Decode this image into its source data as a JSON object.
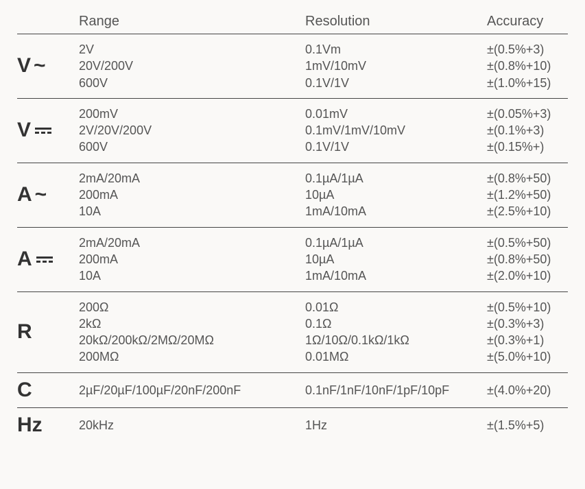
{
  "headers": {
    "range": "Range",
    "resolution": "Resolution",
    "accuracy": "Accuracy"
  },
  "sections": [
    {
      "symbol": "V",
      "symbolType": "ac",
      "rows": [
        {
          "range": "2V",
          "resolution": "0.1Vm",
          "accuracy": "±(0.5%+3)"
        },
        {
          "range": "20V/200V",
          "resolution": "1mV/10mV",
          "accuracy": "±(0.8%+10)"
        },
        {
          "range": "600V",
          "resolution": "0.1V/1V",
          "accuracy": "±(1.0%+15)"
        }
      ]
    },
    {
      "symbol": "V",
      "symbolType": "dc",
      "rows": [
        {
          "range": "200mV",
          "resolution": "0.01mV",
          "accuracy": "±(0.05%+3)"
        },
        {
          "range": "2V/20V/200V",
          "resolution": "0.1mV/1mV/10mV",
          "accuracy": "±(0.1%+3)"
        },
        {
          "range": "600V",
          "resolution": "0.1V/1V",
          "accuracy": "±(0.15%+)"
        }
      ]
    },
    {
      "symbol": "A",
      "symbolType": "ac",
      "rows": [
        {
          "range": "2mA/20mA",
          "resolution": "0.1µA/1µA",
          "accuracy": "±(0.8%+50)"
        },
        {
          "range": "200mA",
          "resolution": "10µA",
          "accuracy": "±(1.2%+50)"
        },
        {
          "range": "10A",
          "resolution": "1mA/10mA",
          "accuracy": "±(2.5%+10)"
        }
      ]
    },
    {
      "symbol": "A",
      "symbolType": "dc",
      "rows": [
        {
          "range": "2mA/20mA",
          "resolution": "0.1µA/1µA",
          "accuracy": "±(0.5%+50)"
        },
        {
          "range": "200mA",
          "resolution": "10µA",
          "accuracy": "±(0.8%+50)"
        },
        {
          "range": "10A",
          "resolution": "1mA/10mA",
          "accuracy": "±(2.0%+10)"
        }
      ]
    },
    {
      "symbol": "R",
      "symbolType": "plain",
      "rows": [
        {
          "range": "200Ω",
          "resolution": "0.01Ω",
          "accuracy": "±(0.5%+10)"
        },
        {
          "range": "2kΩ",
          "resolution": "0.1Ω",
          "accuracy": "±(0.3%+3)"
        },
        {
          "range": "20kΩ/200kΩ/2MΩ/20MΩ",
          "resolution": "1Ω/10Ω/0.1kΩ/1kΩ",
          "accuracy": "±(0.3%+1)"
        },
        {
          "range": "200MΩ",
          "resolution": "0.01MΩ",
          "accuracy": "±(5.0%+10)"
        }
      ]
    },
    {
      "symbol": "C",
      "symbolType": "plain",
      "rows": [
        {
          "range": "2µF/20µF/100µF/20nF/200nF",
          "resolution": "0.1nF/1nF/10nF/1pF/10pF",
          "accuracy": "±(4.0%+20)"
        }
      ]
    },
    {
      "symbol": "Hz",
      "symbolType": "plain",
      "rows": [
        {
          "range": "20kHz",
          "resolution": "1Hz",
          "accuracy": "±(1.5%+5)"
        }
      ]
    }
  ]
}
